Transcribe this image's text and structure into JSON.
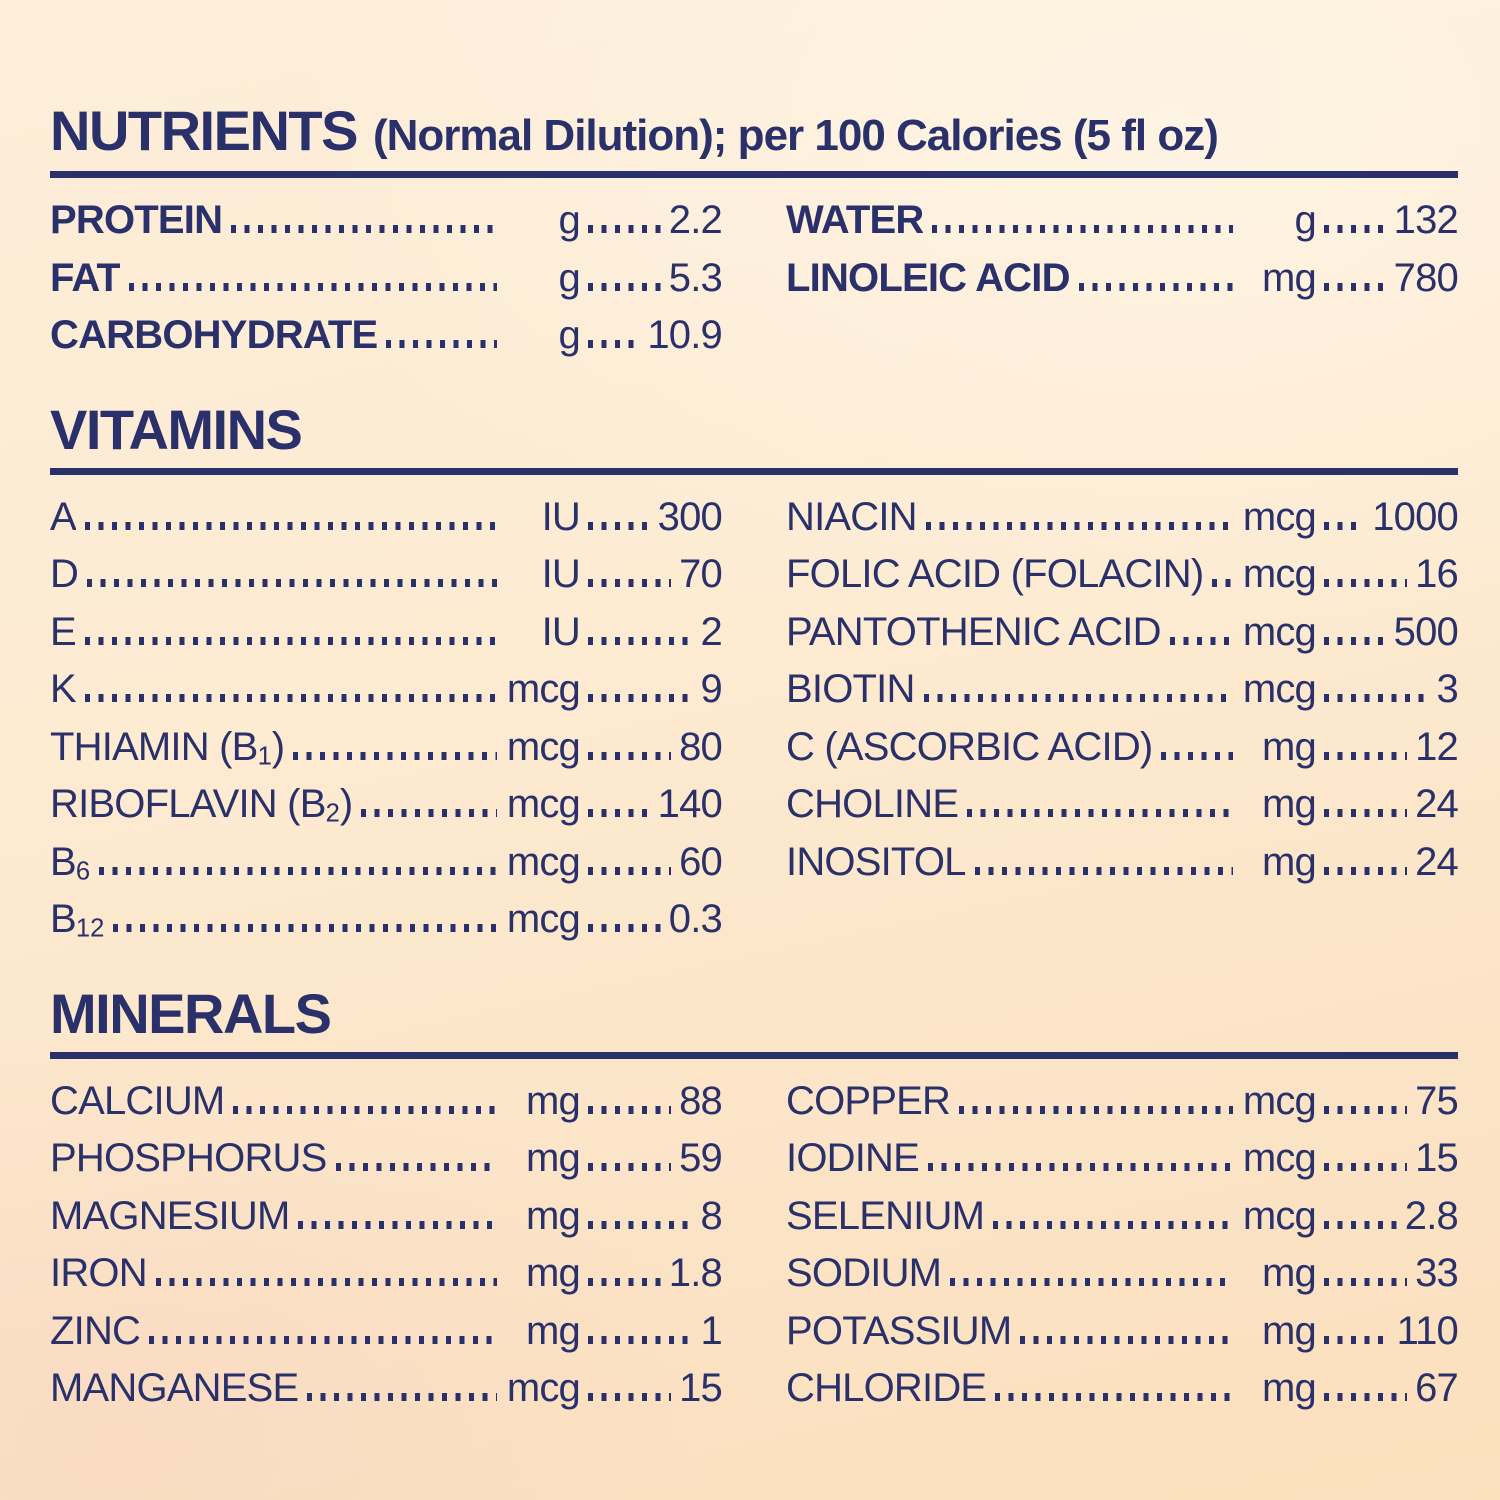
{
  "document_type": "nutrition-information-panel",
  "colors": {
    "text_navy": "#2a316a",
    "rule_navy": "#2a316a",
    "background_cream_top": "#fdeeda",
    "background_peach_bottom": "#fcdfbd"
  },
  "sections": [
    {
      "id": "nutrients",
      "title": "NUTRIENTS",
      "subtitle": "(Normal Dilution); per 100 Calories (5 fl oz)",
      "bold_labels": true,
      "left": [
        {
          "label": "PROTEIN",
          "unit": "g",
          "value": "2.2"
        },
        {
          "label": "FAT",
          "unit": "g",
          "value": "5.3"
        },
        {
          "label": "CARBOHYDRATE",
          "unit": "g",
          "value": "10.9"
        }
      ],
      "right": [
        {
          "label": "WATER",
          "unit": "g",
          "value": "132"
        },
        {
          "label": "LINOLEIC ACID",
          "unit": "mg",
          "value": "780"
        }
      ]
    },
    {
      "id": "vitamins",
      "title": "VITAMINS",
      "subtitle": "",
      "bold_labels": false,
      "left": [
        {
          "label": "A",
          "unit": "IU",
          "value": "300"
        },
        {
          "label": "D",
          "unit": "IU",
          "value": "70"
        },
        {
          "label": "E",
          "unit": "IU",
          "value": "2"
        },
        {
          "label": "K",
          "unit": "mcg",
          "value": "9"
        },
        {
          "label": "THIAMIN (B₁)",
          "unit": "mcg",
          "value": "80"
        },
        {
          "label": "RIBOFLAVIN (B₂)",
          "unit": "mcg",
          "value": "140"
        },
        {
          "label": "B₆",
          "unit": "mcg",
          "value": "60"
        },
        {
          "label": "B₁₂",
          "unit": "mcg",
          "value": "0.3"
        }
      ],
      "right": [
        {
          "label": "NIACIN",
          "unit": "mcg",
          "value": "1000"
        },
        {
          "label": "FOLIC ACID (FOLACIN)",
          "unit": "mcg",
          "value": "16"
        },
        {
          "label": "PANTOTHENIC ACID",
          "unit": "mcg",
          "value": "500"
        },
        {
          "label": "BIOTIN",
          "unit": "mcg",
          "value": "3"
        },
        {
          "label": "C (ASCORBIC ACID)",
          "unit": "mg",
          "value": "12"
        },
        {
          "label": "CHOLINE",
          "unit": "mg",
          "value": "24"
        },
        {
          "label": "INOSITOL",
          "unit": "mg",
          "value": "24"
        }
      ]
    },
    {
      "id": "minerals",
      "title": "MINERALS",
      "subtitle": "",
      "bold_labels": false,
      "left": [
        {
          "label": "CALCIUM",
          "unit": "mg",
          "value": "88"
        },
        {
          "label": "PHOSPHORUS",
          "unit": "mg",
          "value": "59"
        },
        {
          "label": "MAGNESIUM",
          "unit": "mg",
          "value": "8"
        },
        {
          "label": "IRON",
          "unit": "mg",
          "value": "1.8"
        },
        {
          "label": "ZINC",
          "unit": "mg",
          "value": "1"
        },
        {
          "label": "MANGANESE",
          "unit": "mcg",
          "value": "15"
        }
      ],
      "right": [
        {
          "label": "COPPER",
          "unit": "mcg",
          "value": "75"
        },
        {
          "label": "IODINE",
          "unit": "mcg",
          "value": "15"
        },
        {
          "label": "SELENIUM",
          "unit": "mcg",
          "value": "2.8"
        },
        {
          "label": "SODIUM",
          "unit": "mg",
          "value": "33"
        },
        {
          "label": "POTASSIUM",
          "unit": "mg",
          "value": "110"
        },
        {
          "label": "CHLORIDE",
          "unit": "mg",
          "value": "67"
        }
      ]
    }
  ]
}
